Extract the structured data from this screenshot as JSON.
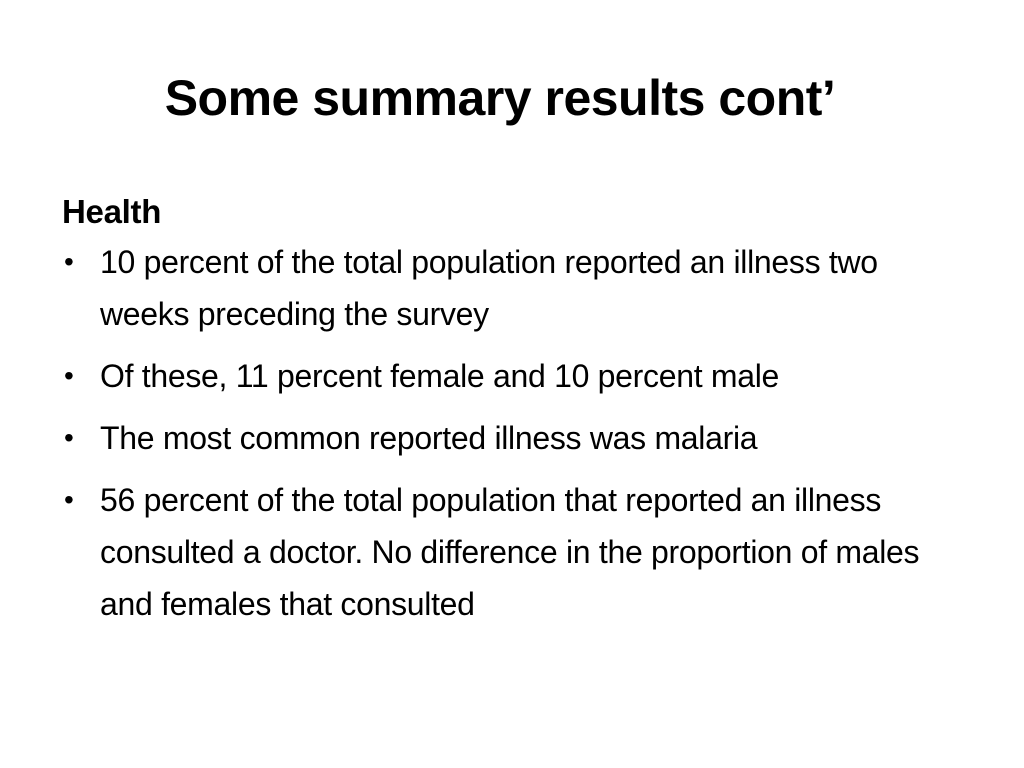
{
  "slide": {
    "title": "Some summary results cont’",
    "section_heading": "Health",
    "bullet_glyph": "•",
    "bullets": [
      {
        "text": "10 percent of the total population reported  an illness two weeks preceding the survey"
      },
      {
        "text": "Of these, 11 percent female and 10 percent male"
      },
      {
        "text": "The most common reported illness was malaria"
      },
      {
        "text": "56 percent of the total population that reported an illness consulted a doctor. No difference in the proportion of males and females that consulted"
      }
    ]
  }
}
